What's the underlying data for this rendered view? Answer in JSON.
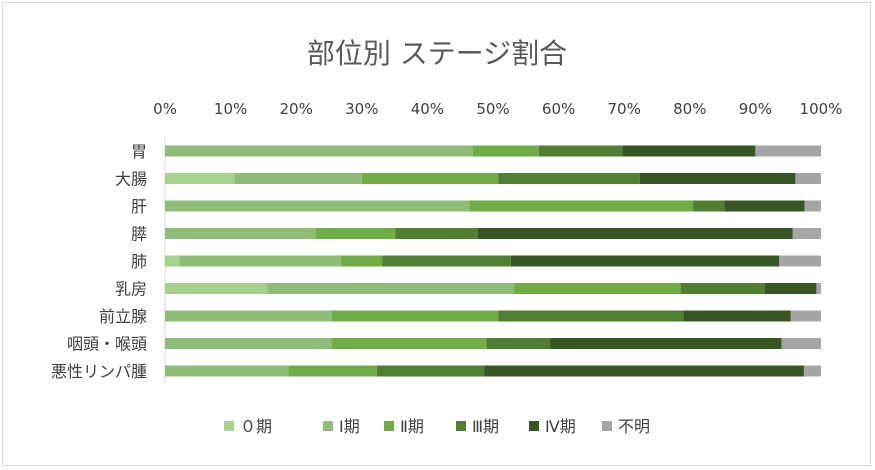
{
  "chart_data": {
    "type": "bar",
    "orientation": "horizontal",
    "stacked": "percent",
    "title": "部位別 ステージ割合",
    "xlabel": "",
    "ylabel": "",
    "xlim": [
      0,
      100
    ],
    "x_ticks": [
      "0%",
      "10%",
      "20%",
      "30%",
      "40%",
      "50%",
      "60%",
      "70%",
      "80%",
      "90%",
      "100%"
    ],
    "legend_position": "bottom",
    "grid": false,
    "categories": [
      "胃",
      "大腸",
      "肝",
      "膵",
      "肺",
      "乳房",
      "前立腺",
      "咽頭・喉頭",
      "悪性リンパ腫"
    ],
    "series": [
      {
        "name": "０期",
        "color": "#a9d18e",
        "values": [
          0,
          10.6,
          0,
          0,
          2.2,
          15.6,
          0,
          0,
          0
        ]
      },
      {
        "name": "Ⅰ期",
        "color": "#8fbc78",
        "values": [
          46.9,
          19.4,
          46.4,
          22.9,
          24.6,
          37.6,
          25.4,
          25.4,
          18.8
        ]
      },
      {
        "name": "Ⅱ期",
        "color": "#70ad47",
        "values": [
          10.1,
          20.8,
          34.1,
          12.2,
          6.3,
          25.4,
          25.4,
          23.6,
          13.5
        ]
      },
      {
        "name": "Ⅲ期",
        "color": "#507e32",
        "values": [
          12.7,
          21.6,
          4.8,
          12.6,
          19.6,
          12.8,
          28.2,
          9.7,
          16.4
        ]
      },
      {
        "name": "Ⅳ期",
        "color": "#375623",
        "values": [
          20.3,
          23.7,
          12.2,
          48.0,
          40.9,
          7.9,
          16.4,
          35.3,
          48.7
        ]
      },
      {
        "name": "不明",
        "color": "#a5a5a5",
        "values": [
          10.0,
          3.9,
          2.5,
          4.3,
          6.4,
          0.7,
          4.6,
          6.0,
          2.6
        ]
      }
    ]
  }
}
